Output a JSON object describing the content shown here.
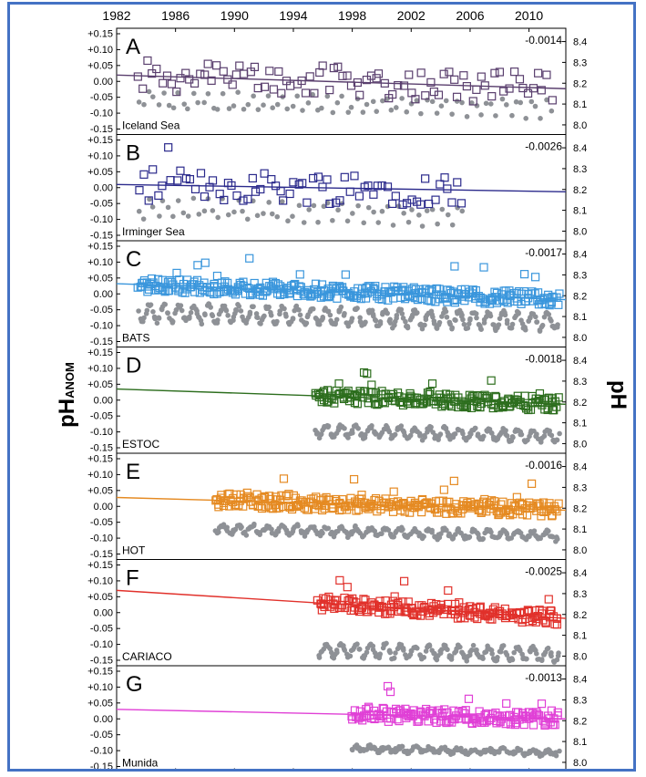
{
  "chart_data": {
    "type": "scatter",
    "y_left_label": "pH",
    "y_left_label_sub": "ANOM",
    "y_right_label": "pH",
    "x_ticks": [
      "1982",
      "1986",
      "1990",
      "1994",
      "1998",
      "2002",
      "2006",
      "2010"
    ],
    "xlim": [
      1982,
      2012.5
    ],
    "y_left_ticks": [
      "+0.15",
      "+0.10",
      "+0.05",
      "0.00",
      "-0.05",
      "-0.10",
      "-0.15"
    ],
    "y_left_lim": [
      -0.15,
      0.15
    ],
    "y_right_ticks": [
      "8.4",
      "8.3",
      "8.2",
      "8.1",
      "8.0"
    ],
    "y_right_lim": [
      7.98,
      8.42
    ],
    "panels": [
      {
        "letter": "A",
        "site": "Iceland Sea",
        "slope": "-0.0014",
        "color": "#5a3f6e",
        "anom_start": 1983.5,
        "anom_end": 2011.5,
        "ph_mean": 8.12,
        "ph_amp": 0.04,
        "trend": [
          0.02,
          -0.023
        ],
        "sampling": "sparse"
      },
      {
        "letter": "B",
        "site": "Irminger Sea",
        "slope": "-0.0026",
        "color": "#2b2a8c",
        "anom_start": 1983.5,
        "anom_end": 2005.5,
        "ph_mean": 8.11,
        "ph_amp": 0.05,
        "trend": [
          0.01,
          -0.013
        ],
        "sampling": "sparse"
      },
      {
        "letter": "C",
        "site": "BATS",
        "slope": "-0.0017",
        "color": "#3a96dc",
        "anom_start": 1983.5,
        "anom_end": 2012.0,
        "ph_mean": 8.12,
        "ph_amp": 0.04,
        "trend": [
          0.032,
          -0.018
        ],
        "sampling": "dense"
      },
      {
        "letter": "D",
        "site": "ESTOC",
        "slope": "-0.0018",
        "color": "#2d6e1e",
        "anom_start": 1995.5,
        "anom_end": 2012.0,
        "ph_mean": 8.08,
        "ph_amp": 0.025,
        "trend": [
          0.035,
          -0.013
        ],
        "sampling": "dense"
      },
      {
        "letter": "E",
        "site": "HOT",
        "slope": "-0.0016",
        "color": "#e58a22",
        "anom_start": 1988.7,
        "anom_end": 2012.0,
        "ph_mean": 8.11,
        "ph_amp": 0.02,
        "trend": [
          0.028,
          -0.012
        ],
        "sampling": "dense"
      },
      {
        "letter": "F",
        "site": "CARIACO",
        "slope": "-0.0025",
        "color": "#e1312b",
        "anom_start": 1995.7,
        "anom_end": 2012.0,
        "ph_mean": 8.05,
        "ph_amp": 0.03,
        "trend": [
          0.07,
          -0.018
        ],
        "sampling": "dense"
      },
      {
        "letter": "G",
        "site": "Munida",
        "slope": "-0.0013",
        "color": "#e040d6",
        "anom_start": 1998.0,
        "anom_end": 2012.0,
        "ph_mean": 8.09,
        "ph_amp": 0.01,
        "trend": [
          0.03,
          0.0
        ],
        "sampling": "dense"
      }
    ]
  }
}
